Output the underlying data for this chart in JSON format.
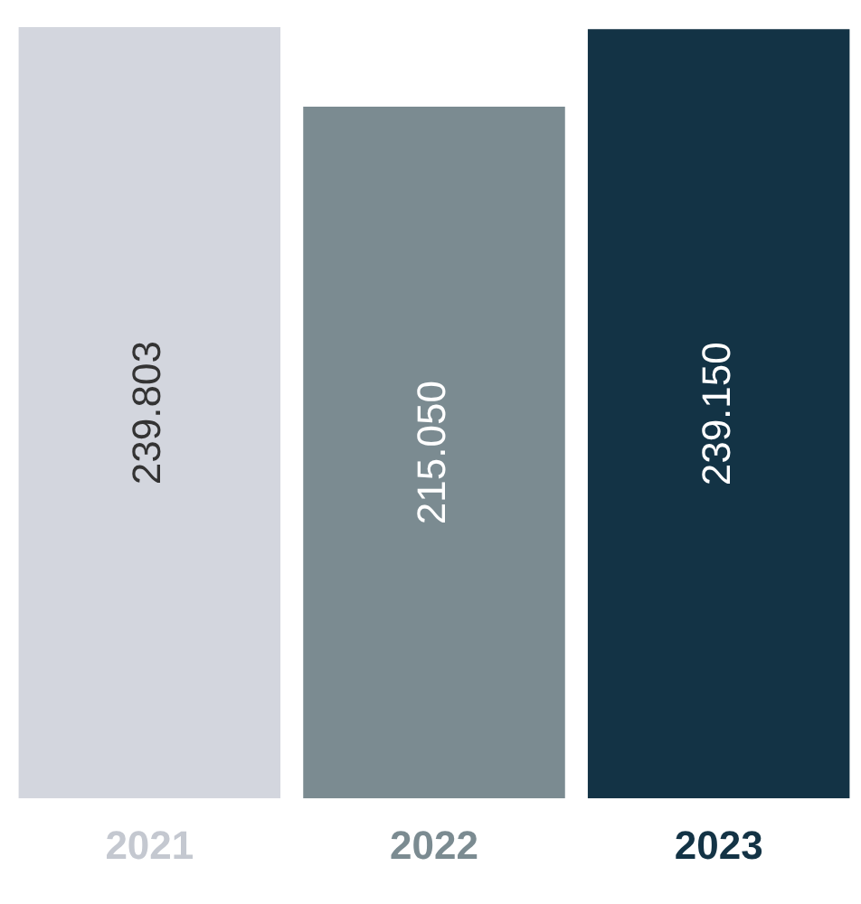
{
  "chart_data": {
    "type": "bar",
    "categories": [
      "2021",
      "2022",
      "2023"
    ],
    "values": [
      239803,
      215050,
      239150
    ],
    "value_labels": [
      "239.803",
      "215.050",
      "239.150"
    ],
    "colors": [
      "#d3d6de",
      "#7b8b91",
      "#133345"
    ],
    "grid": false,
    "legend": false
  }
}
